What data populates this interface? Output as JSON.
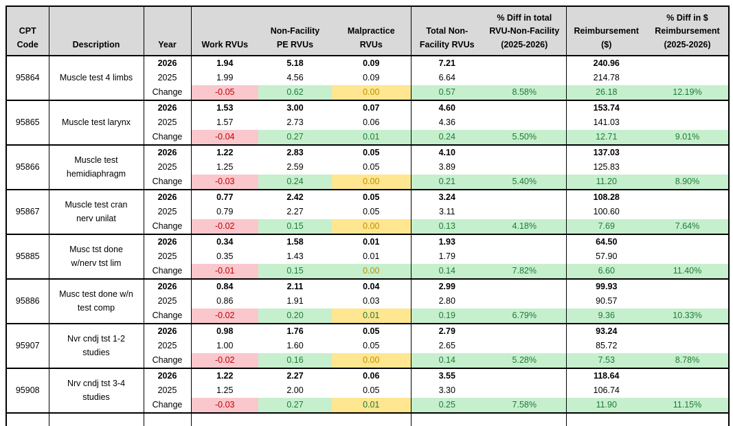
{
  "colors": {
    "header_bg": "#D9D9D9",
    "border": "#000000",
    "negative_bg": "#FAC7CD",
    "negative_text": "#C00000",
    "positive_bg": "#C6EFCE",
    "positive_text": "#1E7B34",
    "neutral_bg": "#FFE690",
    "neutral_text": "#BF8F00"
  },
  "table": {
    "headers": [
      {
        "id": "cpt-code",
        "lines": [
          "CPT",
          "Code"
        ]
      },
      {
        "id": "description",
        "lines": [
          "Description"
        ]
      },
      {
        "id": "year",
        "lines": [
          "Year"
        ]
      },
      {
        "id": "work-rvus",
        "lines": [
          "Work RVUs"
        ]
      },
      {
        "id": "non-facility-pe-rvus",
        "lines": [
          "Non-Facility",
          "PE RVUs"
        ]
      },
      {
        "id": "malpractice-rvus",
        "lines": [
          "Malpractice",
          "RVUs"
        ]
      },
      {
        "id": "total-non-facility-rvus",
        "lines": [
          "Total Non-",
          "Facility RVUs"
        ]
      },
      {
        "id": "pct-diff-total-rvu",
        "lines": [
          "% Diff in total",
          "RVU-Non-Facility",
          "(2025-2026)"
        ]
      },
      {
        "id": "reimbursement",
        "lines": [
          "Reimbursement",
          "($)"
        ]
      },
      {
        "id": "pct-diff-reimbursement",
        "lines": [
          "% Diff in $",
          "Reimbursement",
          "(2025-2026)"
        ]
      }
    ],
    "groups": [
      {
        "code": "95864",
        "description_lines": [
          "Muscle test 4 limbs"
        ],
        "rows": [
          {
            "year": "2026",
            "work": "1.94",
            "pe": "5.18",
            "malp": "0.09",
            "total": "7.21",
            "total_diff": "",
            "reimb": "240.96",
            "reimb_diff": ""
          },
          {
            "year": "2025",
            "work": "1.99",
            "pe": "4.56",
            "malp": "0.09",
            "total": "6.64",
            "total_diff": "",
            "reimb": "214.78",
            "reimb_diff": ""
          },
          {
            "year": "Change",
            "work": "-0.05",
            "pe": "0.62",
            "malp": "0.00",
            "malp_bg": "yellow",
            "malp_fg": "orange",
            "total": "0.57",
            "total_diff": "8.58%",
            "reimb": "26.18",
            "reimb_diff": "12.19%"
          }
        ]
      },
      {
        "code": "95865",
        "description_lines": [
          "Muscle test larynx"
        ],
        "rows": [
          {
            "year": "2026",
            "work": "1.53",
            "pe": "3.00",
            "malp": "0.07",
            "total": "4.60",
            "total_diff": "",
            "reimb": "153.74",
            "reimb_diff": ""
          },
          {
            "year": "2025",
            "work": "1.57",
            "pe": "2.73",
            "malp": "0.06",
            "total": "4.36",
            "total_diff": "",
            "reimb": "141.03",
            "reimb_diff": ""
          },
          {
            "year": "Change",
            "work": "-0.04",
            "pe": "0.27",
            "malp": "0.01",
            "malp_bg": "green",
            "malp_fg": "green",
            "total": "0.24",
            "total_diff": "5.50%",
            "reimb": "12.71",
            "reimb_diff": "9.01%"
          }
        ]
      },
      {
        "code": "95866",
        "description_lines": [
          "Muscle test",
          "hemidiaphragm"
        ],
        "rows": [
          {
            "year": "2026",
            "work": "1.22",
            "pe": "2.83",
            "malp": "0.05",
            "total": "4.10",
            "total_diff": "",
            "reimb": "137.03",
            "reimb_diff": ""
          },
          {
            "year": "2025",
            "work": "1.25",
            "pe": "2.59",
            "malp": "0.05",
            "total": "3.89",
            "total_diff": "",
            "reimb": "125.83",
            "reimb_diff": ""
          },
          {
            "year": "Change",
            "work": "-0.03",
            "pe": "0.24",
            "malp": "0.00",
            "malp_bg": "yellow",
            "malp_fg": "orange",
            "total": "0.21",
            "total_diff": "5.40%",
            "reimb": "11.20",
            "reimb_diff": "8.90%"
          }
        ]
      },
      {
        "code": "95867",
        "description_lines": [
          "Muscle test cran",
          "nerv unilat"
        ],
        "rows": [
          {
            "year": "2026",
            "work": "0.77",
            "pe": "2.42",
            "malp": "0.05",
            "total": "3.24",
            "total_diff": "",
            "reimb": "108.28",
            "reimb_diff": ""
          },
          {
            "year": "2025",
            "work": "0.79",
            "pe": "2.27",
            "malp": "0.05",
            "total": "3.11",
            "total_diff": "",
            "reimb": "100.60",
            "reimb_diff": ""
          },
          {
            "year": "Change",
            "work": "-0.02",
            "pe": "0.15",
            "malp": "0.00",
            "malp_bg": "yellow",
            "malp_fg": "orange",
            "total": "0.13",
            "total_diff": "4.18%",
            "reimb": "7.69",
            "reimb_diff": "7.64%"
          }
        ]
      },
      {
        "code": "95885",
        "description_lines": [
          "Musc tst done",
          "w/nerv tst lim"
        ],
        "rows": [
          {
            "year": "2026",
            "work": "0.34",
            "pe": "1.58",
            "malp": "0.01",
            "total": "1.93",
            "total_diff": "",
            "reimb": "64.50",
            "reimb_diff": ""
          },
          {
            "year": "2025",
            "work": "0.35",
            "pe": "1.43",
            "malp": "0.01",
            "total": "1.79",
            "total_diff": "",
            "reimb": "57.90",
            "reimb_diff": ""
          },
          {
            "year": "Change",
            "work": "-0.01",
            "pe": "0.15",
            "malp": "0.00",
            "malp_bg": "green",
            "malp_fg": "orange",
            "total": "0.14",
            "total_diff": "7.82%",
            "reimb": "6.60",
            "reimb_diff": "11.40%"
          }
        ]
      },
      {
        "code": "95886",
        "description_lines": [
          "Musc test done w/n",
          "test comp"
        ],
        "rows": [
          {
            "year": "2026",
            "work": "0.84",
            "pe": "2.11",
            "malp": "0.04",
            "total": "2.99",
            "total_diff": "",
            "reimb": "99.93",
            "reimb_diff": ""
          },
          {
            "year": "2025",
            "work": "0.86",
            "pe": "1.91",
            "malp": "0.03",
            "total": "2.80",
            "total_diff": "",
            "reimb": "90.57",
            "reimb_diff": ""
          },
          {
            "year": "Change",
            "work": "-0.02",
            "pe": "0.20",
            "malp": "0.01",
            "malp_bg": "yellow",
            "malp_fg": "green",
            "total": "0.19",
            "total_diff": "6.79%",
            "reimb": "9.36",
            "reimb_diff": "10.33%"
          }
        ]
      },
      {
        "code": "95907",
        "description_lines": [
          "Nvr cndj tst 1-2",
          "studies"
        ],
        "rows": [
          {
            "year": "2026",
            "work": "0.98",
            "pe": "1.76",
            "malp": "0.05",
            "total": "2.79",
            "total_diff": "",
            "reimb": "93.24",
            "reimb_diff": ""
          },
          {
            "year": "2025",
            "work": "1.00",
            "pe": "1.60",
            "malp": "0.05",
            "total": "2.65",
            "total_diff": "",
            "reimb": "85.72",
            "reimb_diff": ""
          },
          {
            "year": "Change",
            "work": "-0.02",
            "pe": "0.16",
            "malp": "0.00",
            "malp_bg": "yellow",
            "malp_fg": "orange",
            "total": "0.14",
            "total_diff": "5.28%",
            "reimb": "7.53",
            "reimb_diff": "8.78%"
          }
        ]
      },
      {
        "code": "95908",
        "description_lines": [
          "Nrv cndj tst 3-4",
          "studies"
        ],
        "rows": [
          {
            "year": "2026",
            "work": "1.22",
            "pe": "2.27",
            "malp": "0.06",
            "total": "3.55",
            "total_diff": "",
            "reimb": "118.64",
            "reimb_diff": ""
          },
          {
            "year": "2025",
            "work": "1.25",
            "pe": "2.00",
            "malp": "0.05",
            "total": "3.30",
            "total_diff": "",
            "reimb": "106.74",
            "reimb_diff": ""
          },
          {
            "year": "Change",
            "work": "-0.03",
            "pe": "0.27",
            "malp": "0.01",
            "malp_bg": "yellow",
            "malp_fg": "green",
            "total": "0.25",
            "total_diff": "7.58%",
            "reimb": "11.90",
            "reimb_diff": "11.15%"
          }
        ]
      }
    ]
  }
}
